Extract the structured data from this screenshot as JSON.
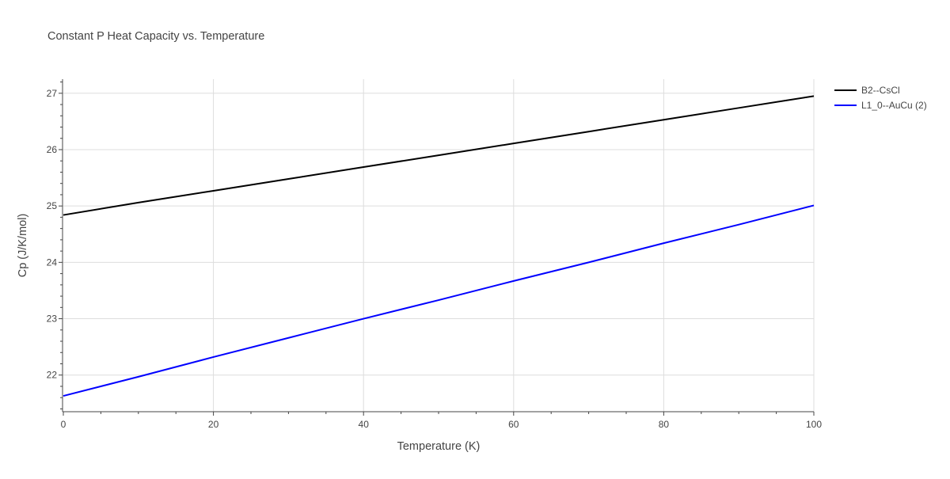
{
  "chart_data": {
    "type": "line",
    "title": "Constant P Heat Capacity vs. Temperature",
    "xlabel": "Temperature (K)",
    "ylabel": "Cp (J/K/mol)",
    "xlim": [
      0,
      100
    ],
    "ylim": [
      21.35,
      27.25
    ],
    "xticks": [
      0,
      20,
      40,
      60,
      80,
      100
    ],
    "yticks": [
      22,
      23,
      24,
      25,
      26,
      27
    ],
    "grid": true,
    "legend_position": "top-right, outside plot",
    "series": [
      {
        "name": "B2--CsCl",
        "color": "#000000",
        "x": [
          0,
          10,
          20,
          30,
          40,
          50,
          60,
          70,
          80,
          90,
          100
        ],
        "y": [
          24.84,
          25.06,
          25.27,
          25.48,
          25.69,
          25.9,
          26.11,
          26.32,
          26.53,
          26.74,
          26.95
        ]
      },
      {
        "name": "L1_0--AuCu (2)",
        "color": "#0000ff",
        "x": [
          0,
          10,
          20,
          30,
          40,
          50,
          60,
          70,
          80,
          90,
          100
        ],
        "y": [
          21.63,
          21.97,
          22.32,
          22.66,
          23.0,
          23.33,
          23.67,
          24.0,
          24.34,
          24.67,
          25.01
        ]
      }
    ]
  },
  "colors": {
    "text": "#444444",
    "grid": "#dddddd",
    "axis": "#444444"
  }
}
